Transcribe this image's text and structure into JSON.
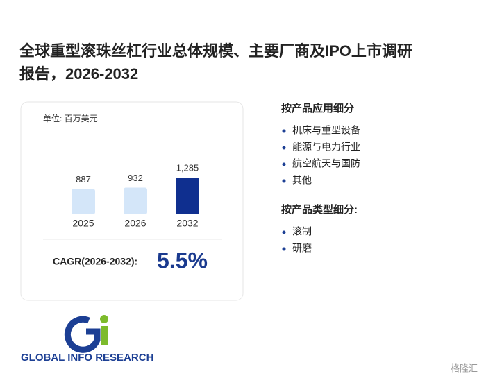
{
  "header": {
    "title_line1": "全球重型滚珠丝杠行业总体规模、主要厂商及IPO上市调研",
    "title_line2": "报告，2026-2032"
  },
  "card": {
    "unit": "单位: 百万美元",
    "chart": {
      "type": "bar",
      "categories": [
        "2025",
        "2026",
        "2032"
      ],
      "values": [
        887,
        932,
        1285
      ],
      "value_labels": [
        "887",
        "932",
        "1,285"
      ],
      "colors": [
        "#d4e6f9",
        "#d4e6f9",
        "#0f2f8f"
      ]
    },
    "cagr_label": "CAGR(2026-2032):",
    "cagr_value": "5.5%"
  },
  "segments": [
    {
      "heading": "按产品应用细分",
      "items": [
        "机床与重型设备",
        "能源与电力行业",
        "航空航天与国防",
        "其他"
      ]
    },
    {
      "heading": "按产品类型细分:",
      "items": [
        "滚制",
        "研磨"
      ]
    }
  ],
  "logo": {
    "name": "GLOBAL INFO RESEARCH"
  },
  "source": "格隆汇"
}
